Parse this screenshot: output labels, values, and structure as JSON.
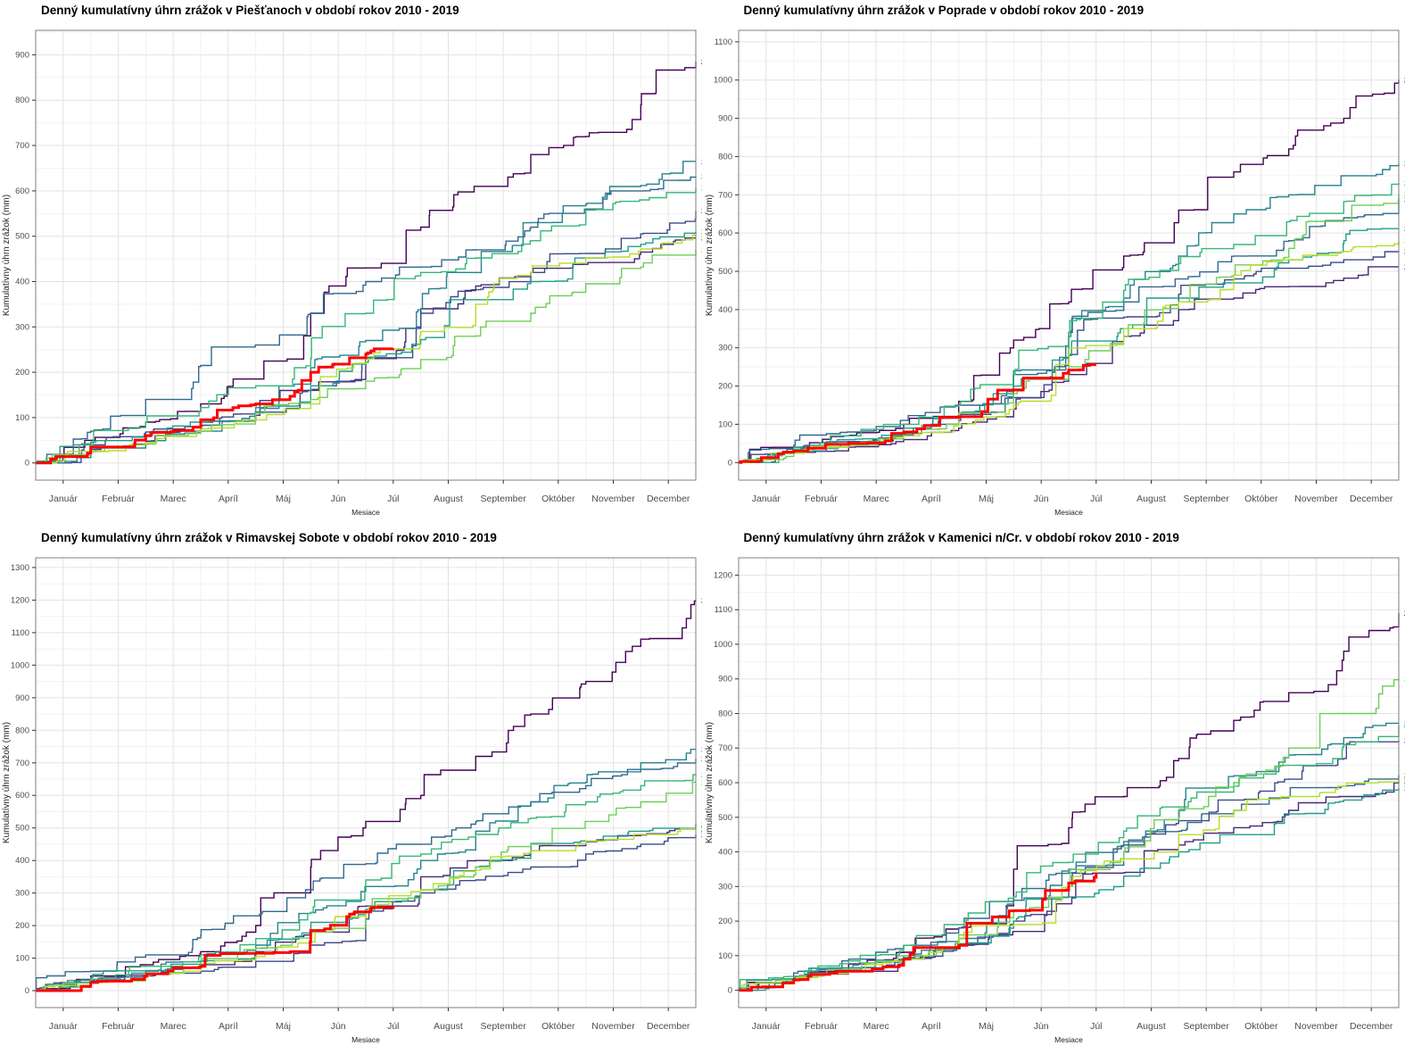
{
  "axis": {
    "xlabel": "Mesiace",
    "ylabel": "Kumulatívny úhrn zrážok (mm)",
    "months": [
      "Január",
      "Február",
      "Marec",
      "Apríl",
      "Máj",
      "Jún",
      "Júl",
      "August",
      "September",
      "Október",
      "November",
      "December"
    ]
  },
  "palette": {
    "2010": "#440154",
    "2011": "#482878",
    "2012": "#3e4989",
    "2013": "#31688e",
    "2014": "#26828e",
    "2015": "#1f9e89",
    "2016": "#35b779",
    "2017": "#6ece58",
    "2018": "#b5de2b",
    "2019": "#ff0000",
    "grid_major": "#e3e3e3",
    "grid_minor": "#f2f2f2",
    "panel_border": "#7f7f7f",
    "tick_text": "#4d4d4d"
  },
  "chart_data": [
    {
      "type": "line",
      "title": "Denný kumulatívny úhrn zrážok v Piešťanoch v období rokov 2010 - 2019",
      "location": "Piešťany",
      "xlabel": "Mesiace",
      "ylabel": "Kumulatívny úhrn zrážok (mm)",
      "ylim": [
        -38,
        954
      ],
      "ytick_max": 900,
      "ytick_step": 100,
      "series": [
        {
          "name": "2010",
          "color": "#440154",
          "width": 1.4,
          "show_label": true,
          "values": [
            0,
            50,
            90,
            130,
            185,
            330,
            430,
            520,
            610,
            680,
            720,
            790,
            885
          ]
        },
        {
          "name": "2011",
          "color": "#482878",
          "width": 1.4,
          "show_label": true,
          "values": [
            0,
            30,
            48,
            75,
            105,
            160,
            230,
            340,
            390,
            420,
            438,
            465,
            496
          ]
        },
        {
          "name": "2012",
          "color": "#3e4989",
          "width": 1.4,
          "show_label": true,
          "values": [
            0,
            40,
            68,
            82,
            112,
            160,
            232,
            330,
            382,
            420,
            462,
            505,
            556
          ]
        },
        {
          "name": "2013",
          "color": "#31688e",
          "width": 1.4,
          "show_label": true,
          "values": [
            0,
            70,
            140,
            215,
            260,
            330,
            400,
            432,
            470,
            520,
            560,
            600,
            632
          ]
        },
        {
          "name": "2014",
          "color": "#26828e",
          "width": 1.4,
          "show_label": true,
          "values": [
            0,
            25,
            45,
            70,
            110,
            210,
            270,
            340,
            420,
            530,
            570,
            612,
            665
          ]
        },
        {
          "name": "2015",
          "color": "#1f9e89",
          "width": 1.4,
          "show_label": true,
          "values": [
            0,
            45,
            62,
            90,
            122,
            170,
            222,
            272,
            360,
            400,
            452,
            482,
            510
          ]
        },
        {
          "name": "2016",
          "color": "#35b779",
          "width": 1.4,
          "show_label": true,
          "values": [
            0,
            40,
            90,
            122,
            170,
            230,
            330,
            420,
            452,
            490,
            540,
            580,
            607
          ]
        },
        {
          "name": "2017",
          "color": "#6ece58",
          "width": 1.4,
          "show_label": true,
          "values": [
            0,
            20,
            40,
            70,
            110,
            140,
            180,
            228,
            280,
            330,
            390,
            432,
            470
          ]
        },
        {
          "name": "2018",
          "color": "#b5de2b",
          "width": 1.4,
          "show_label": true,
          "values": [
            0,
            25,
            45,
            75,
            95,
            130,
            220,
            290,
            350,
            420,
            452,
            472,
            503
          ]
        },
        {
          "name": "2019",
          "color": "#ff0000",
          "width": 3,
          "show_label": false,
          "x": [
            0,
            1,
            2,
            3,
            4,
            5,
            6,
            6.5
          ],
          "values": [
            0,
            35,
            60,
            95,
            130,
            200,
            240,
            252
          ]
        }
      ]
    },
    {
      "type": "line",
      "title": "Denný kumulatívny úhrn zrážok v Poprade v období rokov 2010 - 2019",
      "location": "Poprad",
      "xlabel": "Mesiace",
      "ylabel": "Kumulatívny úhrn zrážok (mm)",
      "ylim": [
        -46,
        1130
      ],
      "ytick_max": 1100,
      "ytick_step": 100,
      "series": [
        {
          "name": "2010",
          "color": "#440154",
          "width": 1.4,
          "show_label": true,
          "values": [
            0,
            40,
            70,
            100,
            160,
            320,
            420,
            540,
            660,
            760,
            820,
            900,
            1000
          ]
        },
        {
          "name": "2011",
          "color": "#482878",
          "width": 1.4,
          "show_label": true,
          "values": [
            0,
            25,
            40,
            60,
            90,
            140,
            230,
            330,
            400,
            430,
            460,
            482,
            512
          ]
        },
        {
          "name": "2012",
          "color": "#3e4989",
          "width": 1.4,
          "show_label": true,
          "values": [
            0,
            35,
            55,
            72,
            110,
            170,
            260,
            380,
            440,
            480,
            508,
            530,
            553
          ]
        },
        {
          "name": "2013",
          "color": "#31688e",
          "width": 1.4,
          "show_label": true,
          "values": [
            0,
            45,
            80,
            110,
            150,
            230,
            340,
            420,
            480,
            540,
            580,
            640,
            688
          ]
        },
        {
          "name": "2014",
          "color": "#26828e",
          "width": 1.4,
          "show_label": true,
          "values": [
            0,
            30,
            50,
            72,
            120,
            240,
            330,
            430,
            540,
            650,
            700,
            750,
            782
          ]
        },
        {
          "name": "2015",
          "color": "#1f9e89",
          "width": 1.4,
          "show_label": true,
          "values": [
            0,
            40,
            60,
            90,
            130,
            200,
            280,
            350,
            430,
            470,
            530,
            572,
            612
          ]
        },
        {
          "name": "2016",
          "color": "#35b779",
          "width": 1.4,
          "show_label": true,
          "values": [
            0,
            35,
            70,
            100,
            150,
            230,
            340,
            450,
            520,
            570,
            630,
            682,
            731
          ]
        },
        {
          "name": "2017",
          "color": "#6ece58",
          "width": 1.4,
          "show_label": true,
          "values": [
            0,
            25,
            45,
            80,
            130,
            180,
            250,
            330,
            420,
            490,
            560,
            632,
            703
          ]
        },
        {
          "name": "2018",
          "color": "#b5de2b",
          "width": 1.4,
          "show_label": true,
          "values": [
            0,
            25,
            45,
            70,
            100,
            150,
            260,
            350,
            420,
            490,
            530,
            552,
            580
          ]
        },
        {
          "name": "2019",
          "color": "#ff0000",
          "width": 3,
          "show_label": false,
          "x": [
            0,
            1,
            2,
            3,
            4,
            5,
            6,
            6.5
          ],
          "values": [
            0,
            30,
            50,
            80,
            120,
            190,
            242,
            256
          ]
        }
      ]
    },
    {
      "type": "line",
      "title": "Denný kumulatívny úhrn zrážok v Rimavskej Sobote v období rokov 2010 - 2019",
      "location": "Rimavská Sobota",
      "xlabel": "Mesiace",
      "ylabel": "Kumulatívny úhrn zrážok (mm)",
      "ylim": [
        -52,
        1330
      ],
      "ytick_max": 1300,
      "ytick_step": 100,
      "series": [
        {
          "name": "2010",
          "color": "#440154",
          "width": 1.4,
          "show_label": true,
          "values": [
            0,
            45,
            80,
            120,
            200,
            380,
            520,
            600,
            720,
            850,
            950,
            1080,
            1200
          ]
        },
        {
          "name": "2011",
          "color": "#482878",
          "width": 1.4,
          "show_label": true,
          "values": [
            0,
            30,
            50,
            80,
            120,
            180,
            260,
            350,
            400,
            430,
            458,
            478,
            497
          ]
        },
        {
          "name": "2012",
          "color": "#3e4989",
          "width": 1.4,
          "show_label": true,
          "values": [
            0,
            25,
            45,
            60,
            90,
            140,
            220,
            300,
            340,
            380,
            420,
            450,
            480
          ]
        },
        {
          "name": "2013",
          "color": "#31688e",
          "width": 1.4,
          "show_label": true,
          "values": [
            0,
            60,
            110,
            170,
            230,
            310,
            390,
            450,
            520,
            580,
            630,
            680,
            713
          ]
        },
        {
          "name": "2014",
          "color": "#26828e",
          "width": 1.4,
          "show_label": true,
          "values": [
            0,
            35,
            60,
            90,
            140,
            240,
            320,
            400,
            490,
            580,
            640,
            700,
            742
          ]
        },
        {
          "name": "2015",
          "color": "#1f9e89",
          "width": 1.4,
          "show_label": true,
          "values": [
            0,
            40,
            62,
            92,
            130,
            190,
            250,
            310,
            380,
            420,
            460,
            490,
            512
          ]
        },
        {
          "name": "2016",
          "color": "#35b779",
          "width": 1.4,
          "show_label": true,
          "values": [
            0,
            35,
            75,
            110,
            160,
            240,
            340,
            420,
            480,
            530,
            580,
            630,
            664
          ]
        },
        {
          "name": "2017",
          "color": "#6ece58",
          "width": 1.4,
          "show_label": true,
          "values": [
            0,
            25,
            50,
            85,
            130,
            180,
            240,
            310,
            380,
            450,
            520,
            580,
            640
          ]
        },
        {
          "name": "2018",
          "color": "#b5de2b",
          "width": 1.4,
          "show_label": true,
          "values": [
            0,
            25,
            45,
            75,
            105,
            150,
            240,
            310,
            370,
            430,
            460,
            480,
            504
          ]
        },
        {
          "name": "2019",
          "color": "#ff0000",
          "width": 3,
          "show_label": false,
          "x": [
            0,
            1,
            2,
            3,
            4,
            5,
            6,
            6.5
          ],
          "values": [
            0,
            25,
            45,
            75,
            115,
            185,
            242,
            260
          ]
        }
      ]
    },
    {
      "type": "line",
      "title": "Denný kumulatívny úhrn zrážok v Kamenici n/Cr. v období rokov 2010 - 2019",
      "location": "Kamenica n/Cr.",
      "xlabel": "Mesiace",
      "ylabel": "Kumulatívny úhrn zrážok (mm)",
      "ylim": [
        -50,
        1250
      ],
      "ytick_max": 1200,
      "ytick_step": 100,
      "series": [
        {
          "name": "2010",
          "color": "#440154",
          "width": 1.4,
          "show_label": true,
          "values": [
            0,
            40,
            70,
            110,
            180,
            350,
            470,
            560,
            670,
            780,
            860,
            980,
            1090
          ]
        },
        {
          "name": "2011",
          "color": "#482878",
          "width": 1.4,
          "show_label": true,
          "values": [
            0,
            30,
            55,
            85,
            120,
            170,
            250,
            340,
            420,
            470,
            520,
            560,
            604
          ]
        },
        {
          "name": "2012",
          "color": "#3e4989",
          "width": 1.4,
          "show_label": true,
          "values": [
            0,
            35,
            60,
            90,
            130,
            200,
            300,
            420,
            490,
            550,
            610,
            670,
            722
          ]
        },
        {
          "name": "2013",
          "color": "#31688e",
          "width": 1.4,
          "show_label": true,
          "values": [
            0,
            50,
            90,
            130,
            180,
            260,
            340,
            400,
            460,
            520,
            560,
            590,
            622
          ]
        },
        {
          "name": "2014",
          "color": "#26828e",
          "width": 1.4,
          "show_label": true,
          "values": [
            0,
            35,
            65,
            100,
            150,
            260,
            350,
            430,
            520,
            620,
            680,
            730,
            772
          ]
        },
        {
          "name": "2015",
          "color": "#1f9e89",
          "width": 1.4,
          "show_label": true,
          "values": [
            0,
            40,
            65,
            95,
            135,
            200,
            270,
            330,
            400,
            450,
            510,
            550,
            585
          ]
        },
        {
          "name": "2016",
          "color": "#35b779",
          "width": 1.4,
          "show_label": true,
          "values": [
            0,
            40,
            85,
            130,
            190,
            270,
            370,
            460,
            530,
            590,
            650,
            710,
            766
          ]
        },
        {
          "name": "2017",
          "color": "#6ece58",
          "width": 1.4,
          "show_label": true,
          "values": [
            0,
            30,
            60,
            100,
            160,
            230,
            310,
            400,
            500,
            600,
            700,
            800,
            900
          ]
        },
        {
          "name": "2018",
          "color": "#b5de2b",
          "width": 1.4,
          "show_label": true,
          "values": [
            0,
            30,
            55,
            90,
            130,
            190,
            300,
            380,
            450,
            520,
            560,
            590,
            608
          ]
        },
        {
          "name": "2019",
          "color": "#ff0000",
          "width": 3,
          "show_label": false,
          "x": [
            0,
            1,
            2,
            3,
            4,
            5,
            6,
            6.5
          ],
          "values": [
            0,
            30,
            55,
            90,
            130,
            230,
            310,
            340
          ]
        }
      ]
    }
  ]
}
